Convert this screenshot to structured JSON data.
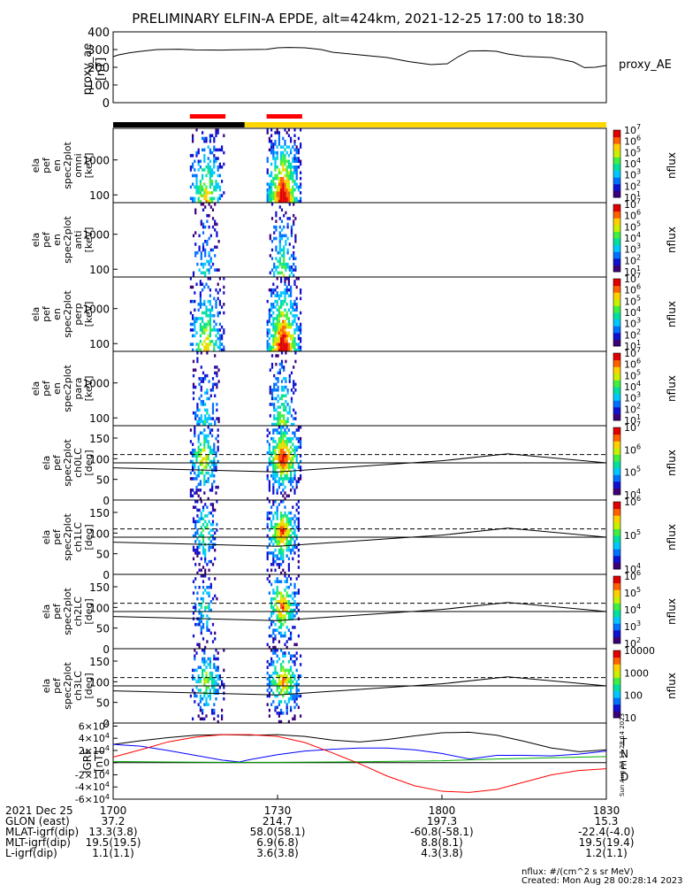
{
  "title": "PRELIMINARY ELFIN-A EPDE, alt=424km, 2021-12-25 17:00 to 18:30",
  "side_stamp": "Sun Aug 27 17:28:14 2023",
  "footer": {
    "units": "nflux: #/(cm^2 s sr MeV)",
    "created": "Created: Mon Aug 28 00:28:14 2023"
  },
  "colors": {
    "ae_line": "#000000",
    "bar_dark": "#000000",
    "bar_day": "#ffd700",
    "science_marker": "#ff0000",
    "grf_total": "#000000",
    "grf_north": "#0000ff",
    "grf_east": "#00b000",
    "grf_down": "#ff0000",
    "colormap": [
      "#3b0078",
      "#1010d0",
      "#0070ff",
      "#00c8ff",
      "#00e0a0",
      "#40f040",
      "#c8f000",
      "#ffd000",
      "#ff6000",
      "#e00000"
    ]
  },
  "x_ticks": [
    {
      "label": "1700",
      "t": 0
    },
    {
      "label": "1730",
      "t": 30
    },
    {
      "label": "1800",
      "t": 60
    },
    {
      "label": "1830",
      "t": 90
    }
  ],
  "orbit_table": [
    {
      "name": "2021 Dec 25",
      "values": [
        "1700",
        "1730",
        "1800",
        "1830"
      ]
    },
    {
      "name": "GLON (east)",
      "values": [
        "37.2",
        "214.7",
        "197.3",
        "15.3"
      ]
    },
    {
      "name": "MLAT-igrf(dip)",
      "values": [
        "13.3(3.8)",
        "58.0(58.1)",
        "-60.8(-58.1)",
        "-22.4(-4.0)"
      ]
    },
    {
      "name": "MLT-igrf(dip)",
      "values": [
        "19.5(19.5)",
        "6.9(6.8)",
        "8.8(8.1)",
        "19.5(19.4)"
      ]
    },
    {
      "name": "L-igrf(dip)",
      "values": [
        "1.1(1.1)",
        "3.6(3.8)",
        "4.3(3.8)",
        "1.2(1.1)"
      ]
    }
  ],
  "chart_data": [
    {
      "type": "line",
      "name": "proxy_AE",
      "ylabel": "proxy_ae [nT]",
      "legend": "proxy_AE",
      "ylim": [
        0,
        400
      ],
      "yticks": [
        "0",
        "100",
        "200",
        "300",
        "400"
      ],
      "series": [
        {
          "name": "proxy_AE",
          "x": [
            0,
            1,
            3,
            5,
            8,
            12,
            15,
            20,
            25,
            28,
            30,
            32,
            35,
            38,
            40,
            45,
            50,
            54,
            58,
            61,
            63,
            65,
            68,
            70,
            72,
            75,
            80,
            84,
            86,
            88,
            90
          ],
          "values": [
            260,
            270,
            282,
            290,
            300,
            302,
            298,
            297,
            300,
            301,
            310,
            312,
            310,
            300,
            285,
            270,
            255,
            232,
            215,
            220,
            260,
            292,
            293,
            290,
            275,
            262,
            255,
            230,
            198,
            200,
            210
          ]
        }
      ]
    },
    {
      "type": "timeline",
      "name": "region bar",
      "segments": [
        {
          "start": 0,
          "end": 24,
          "state": "dark"
        },
        {
          "start": 24,
          "end": 90,
          "state": "day"
        }
      ],
      "science_zones": [
        {
          "start": 14,
          "end": 20.5
        },
        {
          "start": 28,
          "end": 34.5
        }
      ]
    },
    {
      "type": "heatmap",
      "name": "omni",
      "ylabel": "ela pef en spec2plot omni [keV]",
      "yscale": "log",
      "ylim": [
        60,
        8000
      ],
      "yticks": [
        "100",
        "1000"
      ],
      "zlabel": "nflux",
      "ztick_exps": [
        "1",
        "2",
        "3",
        "4",
        "5",
        "6",
        "7"
      ],
      "bursts": [
        {
          "t0": 14.0,
          "t1": 20.5,
          "intensity": 0.65
        },
        {
          "t0": 28.0,
          "t1": 34.5,
          "intensity": 1.0
        }
      ]
    },
    {
      "type": "heatmap",
      "name": "anti",
      "ylabel": "ela pef en spec2plot anti [keV]",
      "yscale": "log",
      "ylim": [
        60,
        8000
      ],
      "yticks": [
        "100",
        "1000"
      ],
      "zlabel": "nflux",
      "ztick_exps": [
        "1",
        "2",
        "3",
        "4",
        "5",
        "6",
        "7"
      ],
      "bursts": [
        {
          "t0": 14.5,
          "t1": 19.5,
          "intensity": 0.3
        },
        {
          "t0": 28.5,
          "t1": 33.5,
          "intensity": 0.5
        }
      ]
    },
    {
      "type": "heatmap",
      "name": "perp",
      "ylabel": "ela pef en spec2plot perp [keV]",
      "yscale": "log",
      "ylim": [
        60,
        8000
      ],
      "yticks": [
        "100",
        "1000"
      ],
      "zlabel": "nflux",
      "ztick_exps": [
        "1",
        "2",
        "3",
        "4",
        "5",
        "6",
        "7"
      ],
      "bursts": [
        {
          "t0": 14.0,
          "t1": 20.5,
          "intensity": 0.65
        },
        {
          "t0": 28.0,
          "t1": 34.5,
          "intensity": 1.0
        }
      ]
    },
    {
      "type": "heatmap",
      "name": "para",
      "ylabel": "ela pef en spec2plot para [keV]",
      "yscale": "log",
      "ylim": [
        60,
        8000
      ],
      "yticks": [
        "100",
        "1000"
      ],
      "zlabel": "nflux",
      "ztick_exps": [
        "1",
        "2",
        "3",
        "4",
        "5",
        "6",
        "7"
      ],
      "bursts": [
        {
          "t0": 14.5,
          "t1": 19.5,
          "intensity": 0.35
        },
        {
          "t0": 28.5,
          "t1": 33.5,
          "intensity": 0.55
        }
      ]
    },
    {
      "type": "heatmap",
      "name": "ch0LC",
      "ylabel": "ela pef spec2plot ch0LC [deg]",
      "ylim": [
        0,
        180
      ],
      "yticks": [
        "0",
        "50",
        "100",
        "150"
      ],
      "zlabel": "nflux",
      "ztick_exps": [
        "4",
        "5",
        "6",
        "7"
      ],
      "dashed_level": 110,
      "loss_cone": {
        "x": [
          0,
          30,
          60,
          72,
          90
        ],
        "values": [
          78,
          68,
          95,
          112,
          90
        ]
      },
      "bursts": [
        {
          "t0": 14.0,
          "t1": 19.5,
          "intensity": 0.75
        },
        {
          "t0": 28.0,
          "t1": 34.5,
          "intensity": 1.0
        }
      ]
    },
    {
      "type": "heatmap",
      "name": "ch1LC",
      "ylabel": "ela pef spec2plot ch1LC [deg]",
      "ylim": [
        0,
        180
      ],
      "yticks": [
        "0",
        "50",
        "100",
        "150"
      ],
      "zlabel": "nflux",
      "ztick_exps": [
        "4",
        "5",
        "6"
      ],
      "dashed_level": 110,
      "loss_cone": {
        "x": [
          0,
          30,
          60,
          72,
          90
        ],
        "values": [
          78,
          68,
          95,
          112,
          90
        ]
      },
      "bursts": [
        {
          "t0": 14.5,
          "t1": 19.0,
          "intensity": 0.55
        },
        {
          "t0": 28.0,
          "t1": 34.0,
          "intensity": 0.9
        }
      ]
    },
    {
      "type": "heatmap",
      "name": "ch2LC",
      "ylabel": "ela pef spec2plot ch2LC [deg]",
      "ylim": [
        0,
        180
      ],
      "yticks": [
        "0",
        "50",
        "100",
        "150"
      ],
      "zlabel": "nflux",
      "ztick_exps": [
        "2",
        "3",
        "4",
        "5",
        "6"
      ],
      "dashed_level": 110,
      "loss_cone": {
        "x": [
          0,
          30,
          60,
          72,
          90
        ],
        "values": [
          78,
          68,
          95,
          112,
          90
        ]
      },
      "bursts": [
        {
          "t0": 14.5,
          "t1": 19.0,
          "intensity": 0.45
        },
        {
          "t0": 28.0,
          "t1": 34.0,
          "intensity": 0.85
        }
      ]
    },
    {
      "type": "heatmap",
      "name": "ch3LC",
      "ylabel": "ela pef spec2plot ch3LC [deg]",
      "ylim": [
        0,
        180
      ],
      "yticks": [
        "0",
        "50",
        "100",
        "150"
      ],
      "zlabel": "nflux",
      "ztick_labels": [
        "10",
        "100",
        "1000",
        "10000"
      ],
      "dashed_level": 110,
      "loss_cone": {
        "x": [
          0,
          30,
          60,
          72,
          90
        ],
        "values": [
          78,
          68,
          95,
          112,
          90
        ]
      },
      "bursts": [
        {
          "t0": 14.0,
          "t1": 20.5,
          "intensity": 0.6
        },
        {
          "t0": 28.0,
          "t1": 34.5,
          "intensity": 0.8
        }
      ]
    },
    {
      "type": "line",
      "name": "GRF",
      "ylabel": "IGRF [nT]",
      "ylim": [
        -60000,
        65000
      ],
      "yticks": [
        {
          "mantissa": "6",
          "exp": "4",
          "value": 60000
        },
        {
          "mantissa": "4",
          "exp": "4",
          "value": 40000
        },
        {
          "mantissa": "2",
          "exp": "4",
          "value": 20000
        },
        {
          "mantissa": "0",
          "exp": "",
          "value": 0
        },
        {
          "mantissa": "-2",
          "exp": "4",
          "value": -20000
        },
        {
          "mantissa": "-4",
          "exp": "4",
          "value": -40000
        },
        {
          "mantissa": "-6",
          "exp": "4",
          "value": -60000
        }
      ],
      "series": [
        {
          "name": "T",
          "x": [
            0,
            5,
            10,
            15,
            20,
            25,
            30,
            35,
            40,
            45,
            50,
            55,
            60,
            65,
            70,
            75,
            80,
            85,
            90
          ],
          "values": [
            30000,
            36000,
            41000,
            45000,
            46000,
            45000,
            46000,
            43000,
            37000,
            34000,
            38000,
            44000,
            49000,
            50000,
            45000,
            35000,
            24000,
            18000,
            21000
          ]
        },
        {
          "name": "N",
          "x": [
            0,
            5,
            10,
            15,
            20,
            23,
            25,
            30,
            35,
            40,
            45,
            50,
            55,
            60,
            65,
            70,
            75,
            80,
            85,
            90
          ],
          "values": [
            30000,
            27000,
            20000,
            12000,
            4000,
            1000,
            5000,
            13000,
            19000,
            22000,
            24000,
            24000,
            21000,
            15000,
            6000,
            12000,
            12000,
            11000,
            14000,
            19000
          ]
        },
        {
          "name": "E",
          "x": [
            0,
            10,
            20,
            30,
            40,
            50,
            60,
            70,
            80,
            90
          ],
          "values": [
            2000,
            1000,
            500,
            500,
            1000,
            2000,
            3000,
            6000,
            8000,
            10000
          ]
        },
        {
          "name": "D",
          "x": [
            0,
            5,
            10,
            15,
            20,
            25,
            30,
            35,
            40,
            45,
            50,
            55,
            60,
            65,
            70,
            75,
            80,
            85,
            90
          ],
          "values": [
            9000,
            21000,
            34000,
            42000,
            46000,
            46000,
            43000,
            33000,
            16000,
            -2000,
            -22000,
            -38000,
            -47000,
            -49000,
            -44000,
            -32000,
            -20000,
            -13000,
            -10000
          ]
        }
      ],
      "legend_labels": [
        "T",
        "N",
        "E",
        "D"
      ]
    }
  ]
}
